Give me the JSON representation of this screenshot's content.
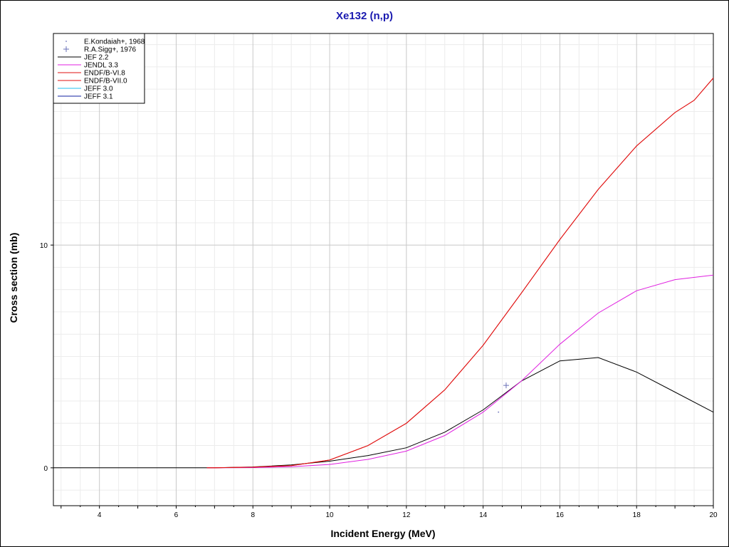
{
  "chart_data": {
    "type": "line",
    "title": "Xe132 (n,p)",
    "xlabel": "Incident Energy (MeV)",
    "ylabel": "Cross section (mb)",
    "xlim": [
      2.8,
      20
    ],
    "ylim": [
      -1.7,
      19.5
    ],
    "x_ticks": [
      4,
      6,
      8,
      10,
      12,
      14,
      16,
      18,
      20
    ],
    "y_ticks": [
      0,
      10
    ],
    "grid": true,
    "legend_position": "top-left",
    "series": [
      {
        "name": "E.Kondaiah+, 1968",
        "type": "scatter",
        "marker": "dot",
        "color": "#6a70b8",
        "x": [
          14.4
        ],
        "y": [
          2.5
        ]
      },
      {
        "name": "R.A.Sigg+, 1976",
        "type": "scatter",
        "marker": "plus",
        "color": "#6a70b8",
        "x": [
          14.6
        ],
        "y": [
          3.7
        ]
      },
      {
        "name": "JEF 2.2",
        "color": "#000000",
        "x": [
          2.8,
          6.8,
          7,
          8,
          9,
          10,
          11,
          12,
          13,
          14,
          15,
          16,
          17,
          18,
          19,
          20
        ],
        "y": [
          0,
          0,
          0,
          0.04,
          0.13,
          0.3,
          0.55,
          0.9,
          1.6,
          2.6,
          3.9,
          4.8,
          4.95,
          4.3,
          3.4,
          2.5
        ]
      },
      {
        "name": "JENDL 3.3",
        "color": "#e020e0",
        "x": [
          6.8,
          7,
          8,
          9,
          10,
          11,
          12,
          13,
          14,
          15,
          16,
          17,
          18,
          19,
          20
        ],
        "y": [
          0,
          0,
          0.01,
          0.05,
          0.15,
          0.38,
          0.75,
          1.45,
          2.5,
          3.9,
          5.55,
          6.95,
          7.95,
          8.45,
          8.65
        ]
      },
      {
        "name": "ENDF/B-VI.8",
        "color": "#e01010",
        "x": [
          6.8,
          7,
          8,
          9,
          10,
          11,
          12,
          13,
          14,
          15,
          16,
          17,
          18,
          19,
          19.5,
          20
        ],
        "y": [
          0,
          0,
          0.03,
          0.1,
          0.35,
          1.0,
          2.0,
          3.5,
          5.5,
          7.85,
          10.25,
          12.5,
          14.45,
          15.95,
          16.5,
          17.5
        ]
      },
      {
        "name": "ENDF/B-VII.0",
        "color": "#e01010",
        "x": [
          6.8,
          7,
          8,
          9,
          10,
          11,
          12,
          13,
          14,
          15,
          16,
          17,
          18,
          19,
          19.5,
          20
        ],
        "y": [
          0,
          0,
          0.03,
          0.1,
          0.35,
          1.0,
          2.0,
          3.5,
          5.5,
          7.85,
          10.25,
          12.5,
          14.45,
          15.95,
          16.5,
          17.5
        ]
      },
      {
        "name": "JEFF 3.0",
        "color": "#20c0f0",
        "x": [],
        "y": []
      },
      {
        "name": "JEFF 3.1",
        "color": "#1020a0",
        "x": [],
        "y": []
      }
    ]
  }
}
